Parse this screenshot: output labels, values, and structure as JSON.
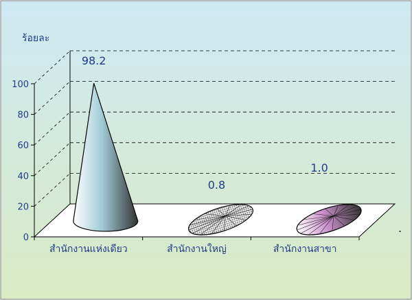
{
  "chart_data": {
    "type": "bar",
    "style": "3d-cone",
    "ylabel": "ร้อยละ",
    "ylim": [
      0,
      100
    ],
    "yticks": [
      0,
      20,
      40,
      60,
      80,
      100
    ],
    "grid": true,
    "categories": [
      "สำนักงานแห่งเดียว",
      "สำนักงานใหญ่",
      "สำนักงานสาขา"
    ],
    "values": [
      98.2,
      0.8,
      1.0
    ],
    "value_labels": [
      "98.2",
      "0.8",
      "1.0"
    ],
    "series_colors": [
      "#9fc9d6",
      "#a0a0a0",
      "#c98fc9"
    ],
    "stray_mark": "."
  },
  "colors": {
    "background_top": "#cfe9f4",
    "background_bottom": "#d8ebc4",
    "border": "#808080",
    "axis": "#000000",
    "text": "#203a8a"
  }
}
